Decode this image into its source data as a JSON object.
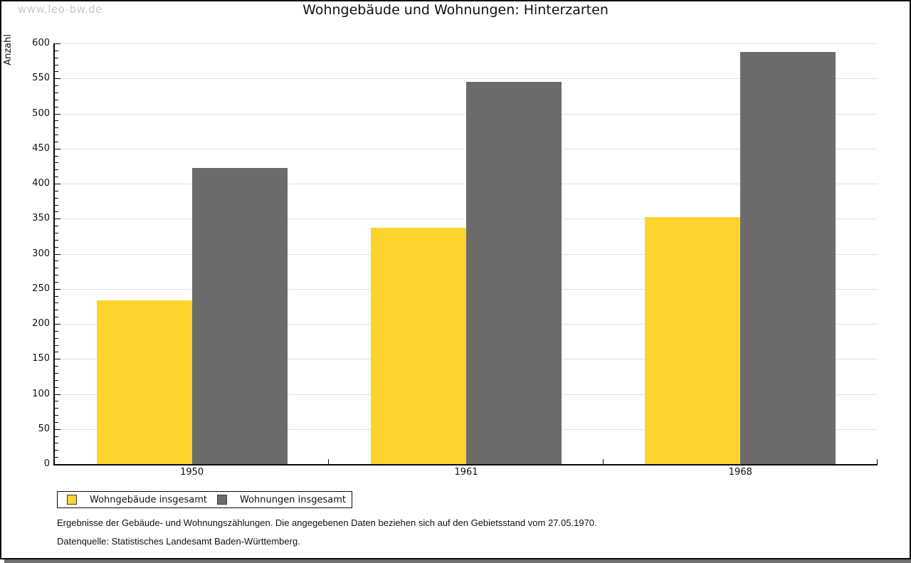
{
  "watermark": "www.leo-bw.de",
  "chart_data": {
    "type": "bar",
    "title": "Wohngebäude und Wohnungen: Hinterzarten",
    "xlabel": "",
    "ylabel": "Anzahl",
    "categories": [
      "1950",
      "1961",
      "1968"
    ],
    "series": [
      {
        "name": "Wohngebäude insgesamt",
        "color": "#FDD42E",
        "values": [
          234,
          337,
          352
        ]
      },
      {
        "name": "Wohnungen insgesamt",
        "color": "#6C6C6C",
        "values": [
          422,
          545,
          588
        ]
      }
    ],
    "ylim": [
      0,
      600
    ],
    "ytick_step": 50,
    "minor_tick_step": 10,
    "grid": true,
    "legend_position": "bottom-left"
  },
  "footnotes": [
    "Ergebnisse der Gebäude- und Wohnungszählungen. Die angegebenen Daten beziehen sich auf den Gebietsstand vom 27.05.1970.",
    "Datenquelle: Statistisches Landesamt Baden-Württemberg."
  ],
  "colors": {
    "series_yellow": "#FDD42E",
    "series_gray": "#6C6C6C",
    "gridline": "#E2E2E2",
    "watermark": "#C9C9C9",
    "frame": "#0A0A0A",
    "window_edge": "#6F6F6F"
  }
}
